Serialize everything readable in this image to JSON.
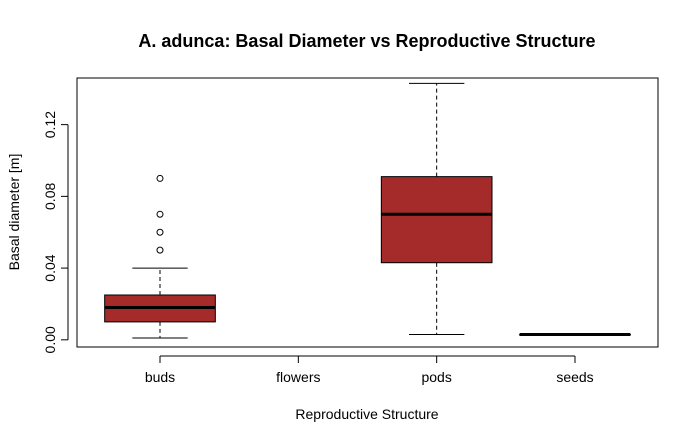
{
  "chart_data": {
    "type": "box",
    "title": "A. adunca: Basal Diameter vs Reproductive Structure",
    "xlabel": "Reproductive Structure",
    "ylabel": "Basal diameter [m]",
    "categories": [
      "buds",
      "flowers",
      "pods",
      "seeds"
    ],
    "ylim": [
      -0.004,
      0.146
    ],
    "yticks": [
      0.0,
      0.04,
      0.08,
      0.12
    ],
    "ytick_labels": [
      "0.00",
      "0.04",
      "0.08",
      "0.12"
    ],
    "box_color": "#a52a2a",
    "boxes": [
      {
        "category": "buds",
        "whisker_low": 0.001,
        "q1": 0.01,
        "median": 0.018,
        "q3": 0.025,
        "whisker_high": 0.04,
        "outliers": [
          0.05,
          0.06,
          0.07,
          0.09
        ]
      },
      {
        "category": "flowers",
        "empty": true
      },
      {
        "category": "pods",
        "whisker_low": 0.003,
        "q1": 0.043,
        "median": 0.07,
        "q3": 0.091,
        "whisker_high": 0.143,
        "outliers": []
      },
      {
        "category": "seeds",
        "whisker_low": 0.003,
        "q1": 0.003,
        "median": 0.003,
        "q3": 0.003,
        "whisker_high": 0.003,
        "outliers": []
      }
    ]
  }
}
